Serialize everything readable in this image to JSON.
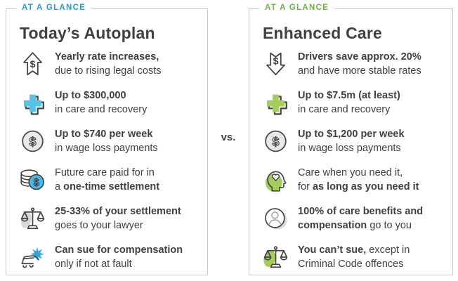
{
  "vs_label": "vs.",
  "colors": {
    "accent_blue": "#1f9ed9",
    "accent_green": "#6cb33f",
    "icon_blue": "#5bc2e7",
    "icon_green": "#a4cd5e",
    "text": "#414042",
    "border": "#c9cacb"
  },
  "panels": [
    {
      "id": "todays-autoplan",
      "eyebrow": "AT A GLANCE",
      "accent": "#1f9ed9",
      "title": "Today’s Autoplan",
      "rows": [
        {
          "icon": "arrow-up-dollar",
          "line1": {
            "bold": "Yearly rate increases,"
          },
          "line2": {
            "pre": "due to rising legal costs"
          }
        },
        {
          "icon": "medical-cross-blue",
          "line1": {
            "bold": "Up to $300,000"
          },
          "line2": {
            "pre": "in care and recovery"
          }
        },
        {
          "icon": "dollar-coin-gray",
          "line1": {
            "bold": "Up to $740 per week"
          },
          "line2": {
            "pre": "in wage loss payments"
          }
        },
        {
          "icon": "coin-stack-dollar-blue",
          "line1": {
            "pre": "Future care paid for in"
          },
          "line2": {
            "pre": "a ",
            "bold": "one-time settlement"
          }
        },
        {
          "icon": "scales-gray",
          "line1": {
            "bold": "25-33% of your settlement"
          },
          "line2": {
            "pre": "goes to your lawyer"
          }
        },
        {
          "icon": "car-crash-blue",
          "line1": {
            "bold": "Can sue for compensation"
          },
          "line2": {
            "pre": "only if not at fault"
          }
        }
      ]
    },
    {
      "id": "enhanced-care",
      "eyebrow": "AT A GLANCE",
      "accent": "#6cb33f",
      "title": "Enhanced Care",
      "rows": [
        {
          "icon": "arrow-down-dollar",
          "line1": {
            "bold": "Drivers save approx. 20%"
          },
          "line2": {
            "pre": "and have more stable rates"
          }
        },
        {
          "icon": "medical-cross-green",
          "line1": {
            "bold": "Up to $7.5m (at least)"
          },
          "line2": {
            "pre": "in care and recovery"
          }
        },
        {
          "icon": "dollar-coin-gray",
          "line1": {
            "bold": "Up to $1,200 per week"
          },
          "line2": {
            "pre": "in wage loss payments"
          }
        },
        {
          "icon": "head-heart-green",
          "line1": {
            "pre": "Care when you need it,"
          },
          "line2": {
            "pre": "for ",
            "bold": "as long as you need it"
          }
        },
        {
          "icon": "person-circle-gray",
          "line1": {
            "bold": "100% of care benefits and"
          },
          "line2": {
            "bold": "compensation",
            "post": " go to you"
          }
        },
        {
          "icon": "scales-green",
          "line1": {
            "bold": "You can’t sue,",
            "post": " except in"
          },
          "line2": {
            "pre": "Criminal Code offences"
          }
        }
      ]
    }
  ]
}
